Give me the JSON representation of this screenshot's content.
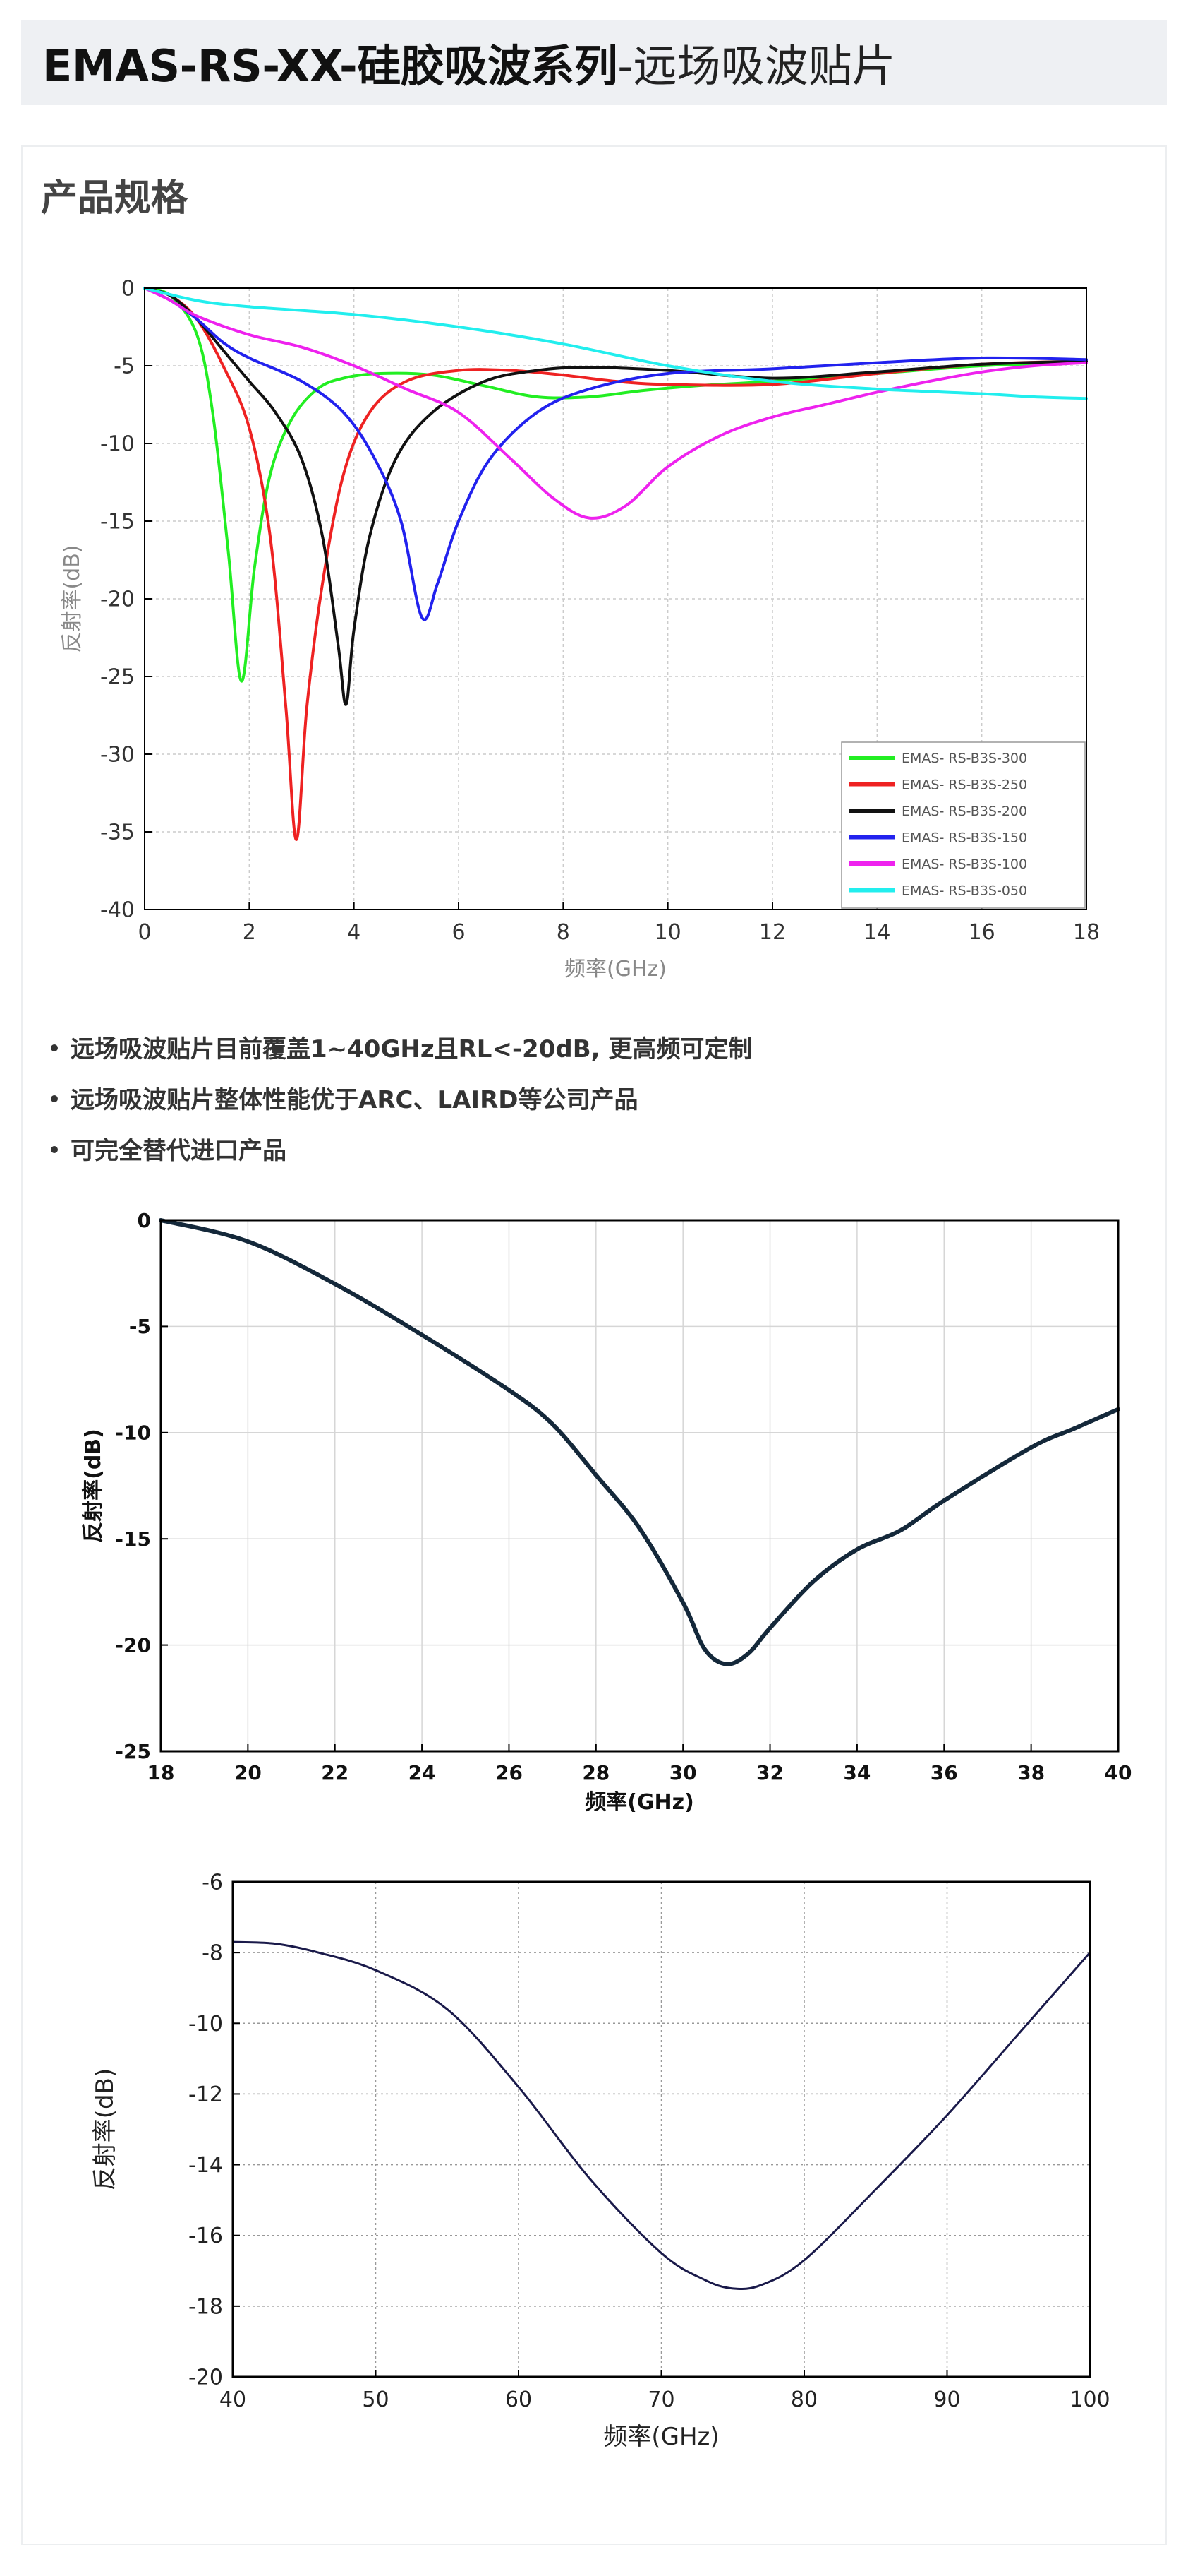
{
  "header": {
    "title_bold": "EMAS-RS-XX-硅胶吸波系列",
    "title_normal": "-远场吸波贴片"
  },
  "section": {
    "title": "产品规格"
  },
  "bullets": [
    "远场吸波贴片目前覆盖1~40GHz且RL<-20dB, 更高频可定制",
    "远场吸波贴片整体性能优于ARC、LAIRD等公司产品",
    "可完全替代进口产品"
  ],
  "chart_data": [
    {
      "type": "line",
      "title": "",
      "xlabel": "频率(GHz)",
      "ylabel": "反射率(dB)",
      "xlim": [
        0,
        18
      ],
      "ylim": [
        -40,
        0
      ],
      "xticks": [
        "0",
        "2",
        "4",
        "6",
        "8",
        "10",
        "12",
        "14",
        "16",
        "18"
      ],
      "yticks": [
        "0",
        "-5",
        "-10",
        "-15",
        "-20",
        "-25",
        "-30",
        "-35",
        "-40"
      ],
      "grid": true,
      "legend": "bottom-right",
      "series": [
        {
          "name": "EMAS- RS-B3S-300",
          "color": "#22ee22",
          "points": [
            [
              0,
              0
            ],
            [
              0.5,
              -0.5
            ],
            [
              1.0,
              -3
            ],
            [
              1.3,
              -8
            ],
            [
              1.6,
              -17
            ],
            [
              1.85,
              -25.3
            ],
            [
              2.1,
              -18
            ],
            [
              2.4,
              -12
            ],
            [
              2.8,
              -8.5
            ],
            [
              3.3,
              -6.5
            ],
            [
              3.8,
              -5.8
            ],
            [
              4.5,
              -5.5
            ],
            [
              5.5,
              -5.6
            ],
            [
              6.5,
              -6.3
            ],
            [
              7.5,
              -7.0
            ],
            [
              8.5,
              -7.0
            ],
            [
              9.5,
              -6.6
            ],
            [
              10.5,
              -6.3
            ],
            [
              12,
              -6.0
            ],
            [
              14,
              -5.5
            ],
            [
              16,
              -5.0
            ],
            [
              18,
              -4.8
            ]
          ]
        },
        {
          "name": "EMAS- RS-B3S-250",
          "color": "#ee2222",
          "points": [
            [
              0,
              0
            ],
            [
              0.5,
              -0.5
            ],
            [
              1.0,
              -2
            ],
            [
              1.5,
              -5
            ],
            [
              2.0,
              -9
            ],
            [
              2.4,
              -16
            ],
            [
              2.7,
              -27
            ],
            [
              2.9,
              -35.5
            ],
            [
              3.1,
              -27
            ],
            [
              3.4,
              -19
            ],
            [
              3.8,
              -12
            ],
            [
              4.3,
              -8
            ],
            [
              5.0,
              -6
            ],
            [
              6.0,
              -5.3
            ],
            [
              7.0,
              -5.3
            ],
            [
              8.0,
              -5.6
            ],
            [
              9.0,
              -6
            ],
            [
              10,
              -6.2
            ],
            [
              12,
              -6.2
            ],
            [
              14,
              -5.5
            ],
            [
              16,
              -4.9
            ],
            [
              18,
              -4.7
            ]
          ]
        },
        {
          "name": "EMAS- RS-B3S-200",
          "color": "#111111",
          "points": [
            [
              0,
              0
            ],
            [
              0.5,
              -0.5
            ],
            [
              1.0,
              -2
            ],
            [
              1.5,
              -4
            ],
            [
              2.0,
              -6
            ],
            [
              2.5,
              -8
            ],
            [
              3.0,
              -11
            ],
            [
              3.4,
              -16
            ],
            [
              3.7,
              -23
            ],
            [
              3.85,
              -26.8
            ],
            [
              4.0,
              -22
            ],
            [
              4.3,
              -16
            ],
            [
              4.8,
              -11
            ],
            [
              5.5,
              -8
            ],
            [
              6.5,
              -6
            ],
            [
              7.5,
              -5.3
            ],
            [
              8.5,
              -5.1
            ],
            [
              10,
              -5.3
            ],
            [
              12,
              -5.8
            ],
            [
              14,
              -5.4
            ],
            [
              16,
              -4.9
            ],
            [
              18,
              -4.7
            ]
          ]
        },
        {
          "name": "EMAS- RS-B3S-150",
          "color": "#2222ee",
          "points": [
            [
              0,
              0
            ],
            [
              0.5,
              -0.8
            ],
            [
              1.0,
              -2
            ],
            [
              1.5,
              -3.5
            ],
            [
              2.0,
              -4.5
            ],
            [
              3.0,
              -6
            ],
            [
              3.8,
              -8
            ],
            [
              4.4,
              -11
            ],
            [
              4.9,
              -15
            ],
            [
              5.3,
              -21.2
            ],
            [
              5.6,
              -19
            ],
            [
              6.0,
              -15
            ],
            [
              6.6,
              -11
            ],
            [
              7.5,
              -8
            ],
            [
              8.5,
              -6.5
            ],
            [
              10,
              -5.5
            ],
            [
              12,
              -5.2
            ],
            [
              14,
              -4.8
            ],
            [
              16,
              -4.5
            ],
            [
              18,
              -4.6
            ]
          ]
        },
        {
          "name": "EMAS- RS-B3S-100",
          "color": "#ee22ee",
          "points": [
            [
              0,
              0
            ],
            [
              0.5,
              -0.8
            ],
            [
              1.0,
              -1.8
            ],
            [
              2.0,
              -3
            ],
            [
              3.0,
              -3.8
            ],
            [
              4.0,
              -5
            ],
            [
              5.0,
              -6.5
            ],
            [
              6.0,
              -8
            ],
            [
              7.0,
              -11
            ],
            [
              7.8,
              -13.5
            ],
            [
              8.5,
              -14.8
            ],
            [
              9.2,
              -14
            ],
            [
              10,
              -11.5
            ],
            [
              11,
              -9.5
            ],
            [
              12,
              -8.3
            ],
            [
              13,
              -7.5
            ],
            [
              14,
              -6.7
            ],
            [
              15,
              -6.0
            ],
            [
              16,
              -5.4
            ],
            [
              17,
              -5.0
            ],
            [
              18,
              -4.8
            ]
          ]
        },
        {
          "name": "EMAS- RS-B3S-050",
          "color": "#22eeee",
          "points": [
            [
              0,
              0
            ],
            [
              1,
              -0.8
            ],
            [
              2,
              -1.2
            ],
            [
              4,
              -1.7
            ],
            [
              6,
              -2.5
            ],
            [
              8,
              -3.6
            ],
            [
              10,
              -5.0
            ],
            [
              12,
              -6.0
            ],
            [
              14,
              -6.5
            ],
            [
              16,
              -6.8
            ],
            [
              17,
              -7.0
            ],
            [
              18,
              -7.1
            ]
          ]
        }
      ]
    },
    {
      "type": "line",
      "title": "",
      "xlabel": "频率(GHz)",
      "ylabel": "反射率(dB)",
      "xlim": [
        18,
        40
      ],
      "ylim": [
        -25,
        0
      ],
      "xticks": [
        "18",
        "20",
        "22",
        "24",
        "26",
        "28",
        "30",
        "32",
        "34",
        "36",
        "38",
        "40"
      ],
      "yticks": [
        "0",
        "-5",
        "-10",
        "-15",
        "-20",
        "-25"
      ],
      "grid": true,
      "series": [
        {
          "color": "#14283a",
          "points": [
            [
              18,
              0
            ],
            [
              20,
              -1
            ],
            [
              22,
              -3
            ],
            [
              24,
              -5.4
            ],
            [
              26,
              -8
            ],
            [
              27,
              -9.6
            ],
            [
              28,
              -12
            ],
            [
              29,
              -14.5
            ],
            [
              30,
              -18
            ],
            [
              30.5,
              -20.2
            ],
            [
              31,
              -20.9
            ],
            [
              31.5,
              -20.4
            ],
            [
              32,
              -19.2
            ],
            [
              33,
              -17
            ],
            [
              34,
              -15.5
            ],
            [
              35,
              -14.6
            ],
            [
              36,
              -13.2
            ],
            [
              38,
              -10.7
            ],
            [
              39,
              -9.8
            ],
            [
              40,
              -8.9
            ]
          ]
        }
      ]
    },
    {
      "type": "line",
      "title": "",
      "xlabel": "频率(GHz)",
      "ylabel": "反射率(dB)",
      "xlim": [
        40,
        100
      ],
      "ylim": [
        -20,
        -6
      ],
      "xticks": [
        "40",
        "50",
        "60",
        "70",
        "80",
        "90",
        "100"
      ],
      "yticks": [
        "-6",
        "-8",
        "-10",
        "-12",
        "-14",
        "-16",
        "-18",
        "-20"
      ],
      "grid": true,
      "series": [
        {
          "color": "#1a1a4a",
          "points": [
            [
              40,
              -7.7
            ],
            [
              43,
              -7.75
            ],
            [
              46,
              -8.0
            ],
            [
              50,
              -8.5
            ],
            [
              55,
              -9.6
            ],
            [
              60,
              -11.8
            ],
            [
              65,
              -14.4
            ],
            [
              70,
              -16.5
            ],
            [
              73,
              -17.25
            ],
            [
              75,
              -17.5
            ],
            [
              77,
              -17.4
            ],
            [
              80,
              -16.7
            ],
            [
              85,
              -14.7
            ],
            [
              90,
              -12.6
            ],
            [
              95,
              -10.3
            ],
            [
              100,
              -8.0
            ]
          ]
        }
      ]
    }
  ]
}
